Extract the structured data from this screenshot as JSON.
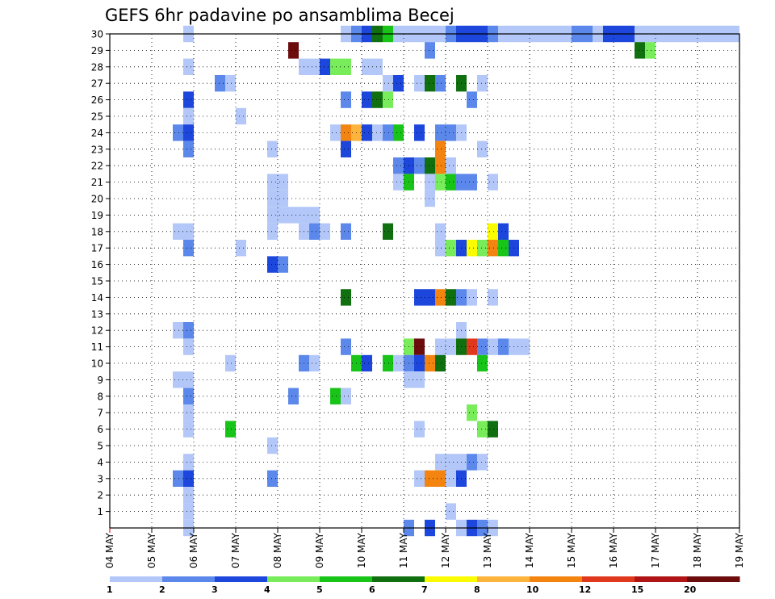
{
  "chart_data": {
    "type": "heatmap",
    "title": "GEFS 6hr padavine po ansamblima Becej",
    "xlabel": "",
    "ylabel": "",
    "x_tick_labels": [
      "04 MAY",
      "05 MAY",
      "06 MAY",
      "07 MAY",
      "08 MAY",
      "09 MAY",
      "10 MAY",
      "11 MAY",
      "12 MAY",
      "13 MAY",
      "14 MAY",
      "15 MAY",
      "16 MAY",
      "17 MAY",
      "18 MAY",
      "19 MAY"
    ],
    "x_range_steps": [
      0,
      60
    ],
    "steps_per_day": 4,
    "y_tick_labels": [
      "1",
      "2",
      "3",
      "4",
      "5",
      "6",
      "7",
      "8",
      "9",
      "10",
      "11",
      "12",
      "13",
      "14",
      "15",
      "16",
      "17",
      "18",
      "19",
      "20",
      "21",
      "22",
      "23",
      "24",
      "25",
      "26",
      "27",
      "28",
      "29",
      "30"
    ],
    "y_range": [
      0,
      30
    ],
    "grid": true,
    "legend_position": "bottom",
    "legend": {
      "labels": [
        "1",
        "2",
        "3",
        "4",
        "5",
        "6",
        "7",
        "8",
        "10",
        "12",
        "15",
        "20"
      ],
      "colors": [
        "#b3c8f8",
        "#5b88ea",
        "#1c46dc",
        "#78ec5a",
        "#18c418",
        "#107010",
        "#fcfc00",
        "#fcb43c",
        "#f48410",
        "#e0381c",
        "#b01414",
        "#6c0c0c"
      ]
    },
    "cells": [
      [
        7,
        30,
        1
      ],
      [
        22,
        30,
        1
      ],
      [
        23,
        30,
        2
      ],
      [
        24,
        30,
        3
      ],
      [
        25,
        30,
        6
      ],
      [
        26,
        30,
        5
      ],
      [
        27,
        30,
        1
      ],
      [
        28,
        30,
        1
      ],
      [
        29,
        30,
        1
      ],
      [
        30,
        30,
        1
      ],
      [
        31,
        30,
        1
      ],
      [
        32,
        30,
        2
      ],
      [
        33,
        30,
        3
      ],
      [
        34,
        30,
        3
      ],
      [
        35,
        30,
        3
      ],
      [
        36,
        30,
        2
      ],
      [
        37,
        30,
        1
      ],
      [
        38,
        30,
        1
      ],
      [
        39,
        30,
        1
      ],
      [
        40,
        30,
        1
      ],
      [
        41,
        30,
        1
      ],
      [
        42,
        30,
        1
      ],
      [
        43,
        30,
        1
      ],
      [
        44,
        30,
        2
      ],
      [
        45,
        30,
        2
      ],
      [
        46,
        30,
        1
      ],
      [
        47,
        30,
        3
      ],
      [
        48,
        30,
        3
      ],
      [
        49,
        30,
        3
      ],
      [
        50,
        30,
        1
      ],
      [
        51,
        30,
        1
      ],
      [
        52,
        30,
        1
      ],
      [
        53,
        30,
        1
      ],
      [
        54,
        30,
        1
      ],
      [
        55,
        30,
        1
      ],
      [
        56,
        30,
        1
      ],
      [
        57,
        30,
        1
      ],
      [
        58,
        30,
        1
      ],
      [
        59,
        30,
        1
      ],
      [
        17,
        29,
        12
      ],
      [
        30,
        29,
        2
      ],
      [
        50,
        29,
        6
      ],
      [
        51,
        29,
        4
      ],
      [
        7,
        28,
        1
      ],
      [
        18,
        28,
        1
      ],
      [
        19,
        28,
        1
      ],
      [
        20,
        28,
        3
      ],
      [
        21,
        28,
        4
      ],
      [
        22,
        28,
        4
      ],
      [
        24,
        28,
        1
      ],
      [
        25,
        28,
        1
      ],
      [
        10,
        27,
        2
      ],
      [
        11,
        27,
        1
      ],
      [
        26,
        27,
        1
      ],
      [
        27,
        27,
        3
      ],
      [
        29,
        27,
        1
      ],
      [
        30,
        27,
        6
      ],
      [
        31,
        27,
        2
      ],
      [
        33,
        27,
        6
      ],
      [
        35,
        27,
        1
      ],
      [
        7,
        26,
        3
      ],
      [
        22,
        26,
        2
      ],
      [
        24,
        26,
        3
      ],
      [
        25,
        26,
        6
      ],
      [
        26,
        26,
        4
      ],
      [
        34,
        26,
        2
      ],
      [
        7,
        25,
        1
      ],
      [
        12,
        25,
        1
      ],
      [
        6,
        24,
        2
      ],
      [
        7,
        24,
        3
      ],
      [
        21,
        24,
        1
      ],
      [
        22,
        24,
        9
      ],
      [
        23,
        24,
        8
      ],
      [
        24,
        24,
        3
      ],
      [
        25,
        24,
        1
      ],
      [
        26,
        24,
        2
      ],
      [
        27,
        24,
        5
      ],
      [
        29,
        24,
        3
      ],
      [
        31,
        24,
        2
      ],
      [
        32,
        24,
        2
      ],
      [
        33,
        24,
        1
      ],
      [
        7,
        23,
        2
      ],
      [
        15,
        23,
        1
      ],
      [
        22,
        23,
        3
      ],
      [
        31,
        23,
        9
      ],
      [
        35,
        23,
        1
      ],
      [
        27,
        22,
        2
      ],
      [
        28,
        22,
        3
      ],
      [
        29,
        22,
        2
      ],
      [
        30,
        22,
        6
      ],
      [
        31,
        22,
        9
      ],
      [
        32,
        22,
        1
      ],
      [
        15,
        21,
        1
      ],
      [
        16,
        21,
        1
      ],
      [
        27,
        21,
        1
      ],
      [
        28,
        21,
        5
      ],
      [
        30,
        21,
        1
      ],
      [
        31,
        21,
        4
      ],
      [
        32,
        21,
        5
      ],
      [
        33,
        21,
        2
      ],
      [
        34,
        21,
        2
      ],
      [
        36,
        21,
        1
      ],
      [
        15,
        20,
        1
      ],
      [
        16,
        20,
        1
      ],
      [
        30,
        20,
        1
      ],
      [
        15,
        19,
        1
      ],
      [
        16,
        19,
        1
      ],
      [
        17,
        19,
        1
      ],
      [
        18,
        19,
        1
      ],
      [
        19,
        19,
        1
      ],
      [
        7,
        18,
        1
      ],
      [
        18,
        18,
        1
      ],
      [
        19,
        18,
        2
      ],
      [
        20,
        18,
        1
      ],
      [
        26,
        18,
        6
      ],
      [
        6,
        18,
        1
      ],
      [
        15,
        18,
        1
      ],
      [
        22,
        18,
        2
      ],
      [
        31,
        18,
        1
      ],
      [
        36,
        18,
        7
      ],
      [
        37,
        18,
        3
      ],
      [
        7,
        17,
        2
      ],
      [
        12,
        17,
        1
      ],
      [
        31,
        17,
        1
      ],
      [
        32,
        17,
        4
      ],
      [
        33,
        17,
        3
      ],
      [
        34,
        17,
        7
      ],
      [
        35,
        17,
        4
      ],
      [
        36,
        17,
        9
      ],
      [
        37,
        17,
        5
      ],
      [
        38,
        17,
        3
      ],
      [
        15,
        16,
        3
      ],
      [
        16,
        16,
        2
      ],
      [
        22,
        14,
        6
      ],
      [
        29,
        14,
        3
      ],
      [
        30,
        14,
        3
      ],
      [
        31,
        14,
        9
      ],
      [
        32,
        14,
        6
      ],
      [
        33,
        14,
        2
      ],
      [
        34,
        14,
        1
      ],
      [
        36,
        14,
        1
      ],
      [
        6,
        12,
        1
      ],
      [
        7,
        12,
        2
      ],
      [
        33,
        12,
        1
      ],
      [
        7,
        11,
        1
      ],
      [
        22,
        11,
        2
      ],
      [
        28,
        11,
        4
      ],
      [
        29,
        11,
        12
      ],
      [
        31,
        11,
        1
      ],
      [
        32,
        11,
        1
      ],
      [
        33,
        11,
        6
      ],
      [
        34,
        11,
        10
      ],
      [
        35,
        11,
        2
      ],
      [
        36,
        11,
        1
      ],
      [
        37,
        11,
        2
      ],
      [
        38,
        11,
        1
      ],
      [
        39,
        11,
        1
      ],
      [
        11,
        10,
        1
      ],
      [
        18,
        10,
        2
      ],
      [
        19,
        10,
        1
      ],
      [
        23,
        10,
        5
      ],
      [
        24,
        10,
        3
      ],
      [
        26,
        10,
        5
      ],
      [
        27,
        10,
        1
      ],
      [
        28,
        10,
        2
      ],
      [
        29,
        10,
        3
      ],
      [
        30,
        10,
        9
      ],
      [
        31,
        10,
        6
      ],
      [
        35,
        10,
        5
      ],
      [
        6,
        9,
        1
      ],
      [
        7,
        9,
        1
      ],
      [
        28,
        9,
        1
      ],
      [
        29,
        9,
        1
      ],
      [
        7,
        8,
        2
      ],
      [
        17,
        8,
        2
      ],
      [
        21,
        8,
        5
      ],
      [
        22,
        8,
        1
      ],
      [
        7,
        7,
        1
      ],
      [
        34,
        7,
        4
      ],
      [
        7,
        6,
        1
      ],
      [
        11,
        6,
        5
      ],
      [
        29,
        6,
        1
      ],
      [
        35,
        6,
        4
      ],
      [
        36,
        6,
        6
      ],
      [
        15,
        5,
        1
      ],
      [
        7,
        4,
        1
      ],
      [
        31,
        4,
        1
      ],
      [
        32,
        4,
        1
      ],
      [
        33,
        4,
        1
      ],
      [
        34,
        4,
        2
      ],
      [
        35,
        4,
        1
      ],
      [
        6,
        3,
        2
      ],
      [
        7,
        3,
        3
      ],
      [
        15,
        3,
        2
      ],
      [
        29,
        3,
        1
      ],
      [
        30,
        3,
        9
      ],
      [
        31,
        3,
        9
      ],
      [
        32,
        3,
        1
      ],
      [
        33,
        3,
        3
      ],
      [
        7,
        2,
        1
      ],
      [
        7,
        1,
        1
      ],
      [
        32,
        1,
        1
      ],
      [
        7,
        0,
        1
      ],
      [
        28,
        0,
        2
      ],
      [
        30,
        0,
        3
      ],
      [
        33,
        0,
        1
      ],
      [
        34,
        0,
        3
      ],
      [
        35,
        0,
        2
      ],
      [
        36,
        0,
        1
      ]
    ]
  }
}
